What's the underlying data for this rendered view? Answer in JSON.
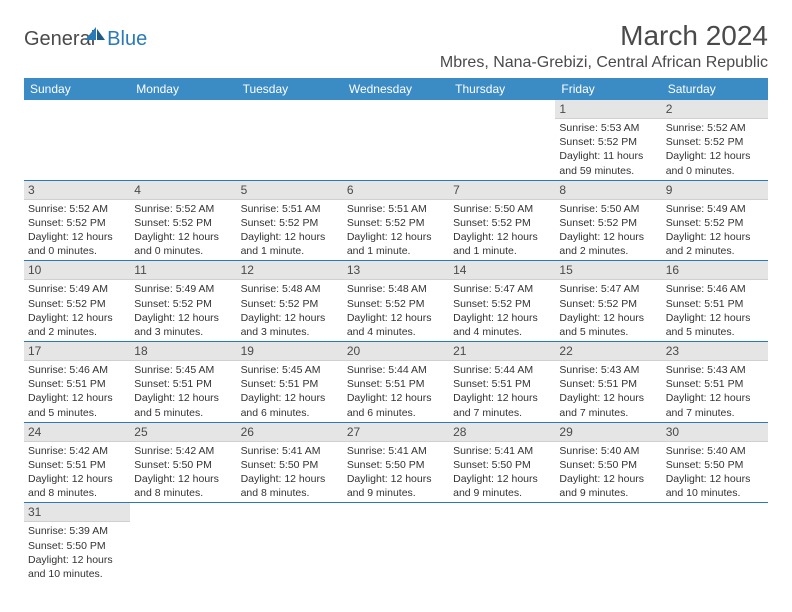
{
  "logo": {
    "general": "General",
    "blue": "Blue"
  },
  "header": {
    "title": "March 2024",
    "location": "Mbres, Nana-Grebizi, Central African Republic"
  },
  "columns": [
    "Sunday",
    "Monday",
    "Tuesday",
    "Wednesday",
    "Thursday",
    "Friday",
    "Saturday"
  ],
  "colors": {
    "header_bg": "#3b8bc4",
    "header_fg": "#ffffff",
    "day_num_bg": "#e5e5e5",
    "row_border": "#2a7ab8",
    "text": "#333333",
    "logo_blue": "#2a7ab8"
  },
  "weeks": [
    [
      null,
      null,
      null,
      null,
      null,
      {
        "n": "1",
        "sr": "5:53 AM",
        "ss": "5:52 PM",
        "dl": "11 hours and 59 minutes."
      },
      {
        "n": "2",
        "sr": "5:52 AM",
        "ss": "5:52 PM",
        "dl": "12 hours and 0 minutes."
      }
    ],
    [
      {
        "n": "3",
        "sr": "5:52 AM",
        "ss": "5:52 PM",
        "dl": "12 hours and 0 minutes."
      },
      {
        "n": "4",
        "sr": "5:52 AM",
        "ss": "5:52 PM",
        "dl": "12 hours and 0 minutes."
      },
      {
        "n": "5",
        "sr": "5:51 AM",
        "ss": "5:52 PM",
        "dl": "12 hours and 1 minute."
      },
      {
        "n": "6",
        "sr": "5:51 AM",
        "ss": "5:52 PM",
        "dl": "12 hours and 1 minute."
      },
      {
        "n": "7",
        "sr": "5:50 AM",
        "ss": "5:52 PM",
        "dl": "12 hours and 1 minute."
      },
      {
        "n": "8",
        "sr": "5:50 AM",
        "ss": "5:52 PM",
        "dl": "12 hours and 2 minutes."
      },
      {
        "n": "9",
        "sr": "5:49 AM",
        "ss": "5:52 PM",
        "dl": "12 hours and 2 minutes."
      }
    ],
    [
      {
        "n": "10",
        "sr": "5:49 AM",
        "ss": "5:52 PM",
        "dl": "12 hours and 2 minutes."
      },
      {
        "n": "11",
        "sr": "5:49 AM",
        "ss": "5:52 PM",
        "dl": "12 hours and 3 minutes."
      },
      {
        "n": "12",
        "sr": "5:48 AM",
        "ss": "5:52 PM",
        "dl": "12 hours and 3 minutes."
      },
      {
        "n": "13",
        "sr": "5:48 AM",
        "ss": "5:52 PM",
        "dl": "12 hours and 4 minutes."
      },
      {
        "n": "14",
        "sr": "5:47 AM",
        "ss": "5:52 PM",
        "dl": "12 hours and 4 minutes."
      },
      {
        "n": "15",
        "sr": "5:47 AM",
        "ss": "5:52 PM",
        "dl": "12 hours and 5 minutes."
      },
      {
        "n": "16",
        "sr": "5:46 AM",
        "ss": "5:51 PM",
        "dl": "12 hours and 5 minutes."
      }
    ],
    [
      {
        "n": "17",
        "sr": "5:46 AM",
        "ss": "5:51 PM",
        "dl": "12 hours and 5 minutes."
      },
      {
        "n": "18",
        "sr": "5:45 AM",
        "ss": "5:51 PM",
        "dl": "12 hours and 5 minutes."
      },
      {
        "n": "19",
        "sr": "5:45 AM",
        "ss": "5:51 PM",
        "dl": "12 hours and 6 minutes."
      },
      {
        "n": "20",
        "sr": "5:44 AM",
        "ss": "5:51 PM",
        "dl": "12 hours and 6 minutes."
      },
      {
        "n": "21",
        "sr": "5:44 AM",
        "ss": "5:51 PM",
        "dl": "12 hours and 7 minutes."
      },
      {
        "n": "22",
        "sr": "5:43 AM",
        "ss": "5:51 PM",
        "dl": "12 hours and 7 minutes."
      },
      {
        "n": "23",
        "sr": "5:43 AM",
        "ss": "5:51 PM",
        "dl": "12 hours and 7 minutes."
      }
    ],
    [
      {
        "n": "24",
        "sr": "5:42 AM",
        "ss": "5:51 PM",
        "dl": "12 hours and 8 minutes."
      },
      {
        "n": "25",
        "sr": "5:42 AM",
        "ss": "5:50 PM",
        "dl": "12 hours and 8 minutes."
      },
      {
        "n": "26",
        "sr": "5:41 AM",
        "ss": "5:50 PM",
        "dl": "12 hours and 8 minutes."
      },
      {
        "n": "27",
        "sr": "5:41 AM",
        "ss": "5:50 PM",
        "dl": "12 hours and 9 minutes."
      },
      {
        "n": "28",
        "sr": "5:41 AM",
        "ss": "5:50 PM",
        "dl": "12 hours and 9 minutes."
      },
      {
        "n": "29",
        "sr": "5:40 AM",
        "ss": "5:50 PM",
        "dl": "12 hours and 9 minutes."
      },
      {
        "n": "30",
        "sr": "5:40 AM",
        "ss": "5:50 PM",
        "dl": "12 hours and 10 minutes."
      }
    ],
    [
      {
        "n": "31",
        "sr": "5:39 AM",
        "ss": "5:50 PM",
        "dl": "12 hours and 10 minutes."
      },
      null,
      null,
      null,
      null,
      null,
      null
    ]
  ],
  "labels": {
    "sunrise": "Sunrise:",
    "sunset": "Sunset:",
    "daylight": "Daylight:"
  }
}
